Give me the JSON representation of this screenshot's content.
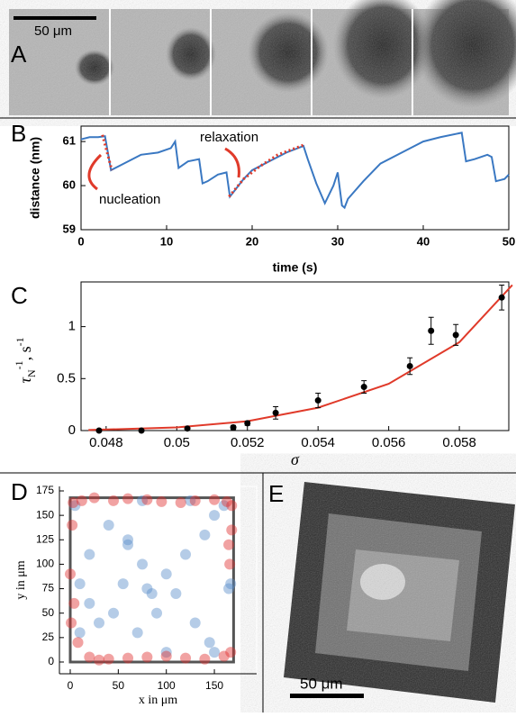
{
  "panel_labels": [
    "A",
    "B",
    "C",
    "D",
    "E"
  ],
  "scale_bars": [
    "50 μm",
    "50 μm"
  ],
  "chart_data": [
    {
      "type": "line",
      "xlabel": "time (s)",
      "ylabel": "distance (nm)",
      "annotations": [
        "relaxation",
        "nucleation"
      ],
      "xlim": [
        0,
        50
      ],
      "ylim": [
        59,
        61.35
      ],
      "xticks": [
        0,
        10,
        20,
        30,
        40,
        50
      ],
      "yticks": [
        59,
        60,
        61
      ],
      "series": [
        {
          "color": "#3a78c2",
          "mode": "solid",
          "x": [
            0,
            1,
            2,
            2.8,
            3.5,
            5,
            7,
            9,
            10.5,
            11,
            11.4,
            12.5,
            13.8,
            14.2,
            14.8,
            16,
            17,
            17.4,
            18,
            19,
            20,
            22,
            24,
            26,
            26.5,
            27.5,
            28.5,
            29.5,
            30,
            30.5,
            30.8,
            31.2,
            33,
            35,
            38,
            40,
            42,
            44.5,
            45,
            46,
            47.5,
            48,
            48.5,
            49.5,
            50
          ],
          "values": [
            61.05,
            61.1,
            61.1,
            61.12,
            60.35,
            60.5,
            60.7,
            60.75,
            60.85,
            61.0,
            60.4,
            60.55,
            60.6,
            60.05,
            60.1,
            60.25,
            60.3,
            59.75,
            59.9,
            60.15,
            60.35,
            60.55,
            60.75,
            60.9,
            60.6,
            60.05,
            59.6,
            60.0,
            60.3,
            59.55,
            59.5,
            59.7,
            60.1,
            60.5,
            60.8,
            61.0,
            61.1,
            61.2,
            60.55,
            60.6,
            60.7,
            60.65,
            60.1,
            60.15,
            60.25
          ]
        },
        {
          "color": "#e03a2a",
          "mode": "dotted",
          "x": [
            2.5,
            3.6
          ],
          "values": [
            61.15,
            60.35
          ]
        },
        {
          "color": "#e03a2a",
          "mode": "dotted",
          "x": [
            17.3,
            19,
            21,
            23,
            26
          ],
          "values": [
            59.75,
            60.15,
            60.45,
            60.7,
            60.92
          ]
        }
      ]
    },
    {
      "type": "scatter",
      "xlabel": "σ",
      "ylabel": [
        "τ",
        "N",
        "-1",
        ", s",
        "-1"
      ],
      "xlim": [
        0.04729,
        0.0594
      ],
      "ylim": [
        0,
        1.43
      ],
      "xticks": [
        0.048,
        0.05,
        0.052,
        0.054,
        0.056,
        0.058
      ],
      "yticks": [
        0,
        0.5,
        1
      ],
      "series": [
        {
          "color": "#e03a2a",
          "mode": "line",
          "x": [
            0.0475,
            0.05,
            0.052,
            0.054,
            0.056,
            0.058,
            0.0595
          ],
          "values": [
            0.005,
            0.03,
            0.09,
            0.22,
            0.45,
            0.85,
            1.4
          ]
        },
        {
          "color": "#000000",
          "mode": "errorbar",
          "x": [
            0.0478,
            0.049,
            0.0503,
            0.0516,
            0.052,
            0.0528,
            0.054,
            0.0553,
            0.0566,
            0.0572,
            0.0579,
            0.0592
          ],
          "values": [
            0,
            0,
            0.02,
            0.03,
            0.07,
            0.17,
            0.29,
            0.42,
            0.62,
            0.96,
            0.92,
            1.28
          ],
          "errors": [
            0.01,
            0.01,
            0.01,
            0.02,
            0.02,
            0.06,
            0.07,
            0.06,
            0.08,
            0.13,
            0.1,
            0.12
          ]
        }
      ]
    },
    {
      "type": "scatter",
      "xlabel": "x in μm",
      "ylabel": "y in μm",
      "xlim": [
        -11.25,
        194
      ],
      "ylim": [
        -12,
        179.6
      ],
      "xticks": [
        0,
        50,
        100,
        150
      ],
      "yticks": [
        0,
        25,
        50,
        75,
        100,
        125,
        150,
        175
      ],
      "series": [
        {
          "color": "#5b8fc9",
          "mode": "markers",
          "x": [
            5,
            40,
            60,
            75,
            80,
            85,
            100,
            120,
            140,
            150,
            160,
            165,
            167,
            30,
            20,
            10,
            45,
            70,
            90,
            110,
            130,
            145,
            75,
            55,
            60,
            20,
            125,
            150,
            10,
            100
          ],
          "values": [
            160,
            140,
            120,
            100,
            75,
            70,
            90,
            110,
            130,
            150,
            160,
            75,
            80,
            40,
            60,
            80,
            50,
            30,
            50,
            70,
            40,
            20,
            165,
            80,
            125,
            110,
            165,
            10,
            30,
            10
          ]
        },
        {
          "color": "#e03030",
          "mode": "markers",
          "x": [
            3,
            12,
            25,
            45,
            60,
            80,
            95,
            115,
            130,
            150,
            163,
            168,
            165,
            168,
            166,
            2,
            0,
            4,
            1,
            8,
            20,
            40,
            60,
            80,
            100,
            120,
            140,
            160,
            167,
            30
          ],
          "values": [
            163,
            165,
            168,
            165,
            167,
            166,
            164,
            163,
            165,
            166,
            164,
            160,
            120,
            135,
            100,
            140,
            90,
            60,
            40,
            20,
            5,
            3,
            4,
            5,
            6,
            4,
            3,
            6,
            10,
            2
          ]
        }
      ]
    }
  ]
}
